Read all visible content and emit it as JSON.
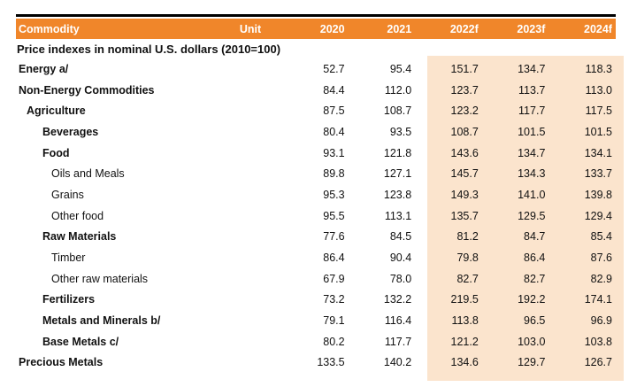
{
  "table": {
    "columns": [
      "Commodity",
      "Unit",
      "2020",
      "2021",
      "2022f",
      "2023f",
      "2024f"
    ],
    "section_title": "Price indexes in nominal U.S. dollars (2010=100)",
    "rows": [
      {
        "label": "Energy a/",
        "indent": 0,
        "bold": true,
        "values": [
          "52.7",
          "95.4",
          "151.7",
          "134.7",
          "118.3"
        ]
      },
      {
        "label": "Non-Energy Commodities",
        "indent": 0,
        "bold": true,
        "values": [
          "84.4",
          "112.0",
          "123.7",
          "113.7",
          "113.0"
        ]
      },
      {
        "label": "Agriculture",
        "indent": 1,
        "bold": true,
        "values": [
          "87.5",
          "108.7",
          "123.2",
          "117.7",
          "117.5"
        ]
      },
      {
        "label": "Beverages",
        "indent": 2,
        "bold": true,
        "values": [
          "80.4",
          "93.5",
          "108.7",
          "101.5",
          "101.5"
        ]
      },
      {
        "label": "Food",
        "indent": 2,
        "bold": true,
        "values": [
          "93.1",
          "121.8",
          "143.6",
          "134.7",
          "134.1"
        ]
      },
      {
        "label": "Oils and Meals",
        "indent": 3,
        "bold": false,
        "values": [
          "89.8",
          "127.1",
          "145.7",
          "134.3",
          "133.7"
        ]
      },
      {
        "label": "Grains",
        "indent": 3,
        "bold": false,
        "values": [
          "95.3",
          "123.8",
          "149.3",
          "141.0",
          "139.8"
        ]
      },
      {
        "label": "Other food",
        "indent": 3,
        "bold": false,
        "values": [
          "95.5",
          "113.1",
          "135.7",
          "129.5",
          "129.4"
        ]
      },
      {
        "label": "Raw Materials",
        "indent": 2,
        "bold": true,
        "values": [
          "77.6",
          "84.5",
          "81.2",
          "84.7",
          "85.4"
        ]
      },
      {
        "label": "Timber",
        "indent": 3,
        "bold": false,
        "values": [
          "86.4",
          "90.4",
          "79.8",
          "86.4",
          "87.6"
        ]
      },
      {
        "label": "Other raw materials",
        "indent": 3,
        "bold": false,
        "values": [
          "67.9",
          "78.0",
          "82.7",
          "82.7",
          "82.9"
        ]
      },
      {
        "label": "Fertilizers",
        "indent": 2,
        "bold": true,
        "values": [
          "73.2",
          "132.2",
          "219.5",
          "192.2",
          "174.1"
        ]
      },
      {
        "label": "Metals and Minerals b/",
        "indent": 2,
        "bold": true,
        "values": [
          "79.1",
          "116.4",
          "113.8",
          "96.5",
          "96.9"
        ]
      },
      {
        "label": "Base Metals c/",
        "indent": 2,
        "bold": true,
        "values": [
          "80.2",
          "117.7",
          "121.2",
          "103.0",
          "103.8"
        ]
      },
      {
        "label": "Precious Metals",
        "indent": 0,
        "bold": true,
        "values": [
          "133.5",
          "140.2",
          "134.6",
          "129.7",
          "126.7"
        ]
      }
    ],
    "colors": {
      "header_bg": "#F0862A",
      "forecast_band_bg": "#FBE4CD",
      "top_rule": "#000000"
    }
  }
}
